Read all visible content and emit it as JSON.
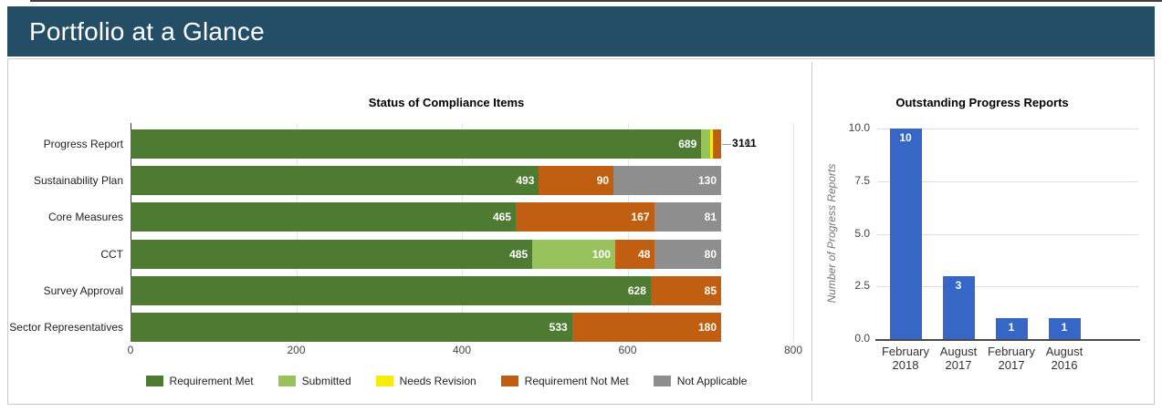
{
  "header": {
    "title": "Portfolio at a Glance"
  },
  "chart_data": [
    {
      "type": "bar",
      "orientation": "horizontal",
      "stacked": true,
      "title": "Status of Compliance Items",
      "categories": [
        "Progress Report",
        "Sustainability Plan",
        "Core Measures",
        "CCT",
        "Survey Approval",
        "Sector Representatives"
      ],
      "series": [
        {
          "name": "Requirement Met",
          "color": "#4E7B31",
          "values": [
            689,
            493,
            465,
            485,
            628,
            533
          ]
        },
        {
          "name": "Submitted",
          "color": "#98C25B",
          "values": [
            11,
            0,
            0,
            100,
            0,
            0
          ]
        },
        {
          "name": "Needs Revision",
          "color": "#F4EC0B",
          "values": [
            3,
            0,
            0,
            0,
            0,
            0
          ]
        },
        {
          "name": "Requirement Not Met",
          "color": "#C05F11",
          "values": [
            10,
            90,
            167,
            48,
            85,
            180
          ]
        },
        {
          "name": "Not Applicable",
          "color": "#8E8E8E",
          "values": [
            0,
            130,
            81,
            80,
            0,
            0
          ]
        }
      ],
      "xlim": [
        0,
        800
      ],
      "x_ticks": [
        "0",
        "200",
        "400",
        "600",
        "800"
      ],
      "grid": true,
      "legend_position": "bottom"
    },
    {
      "type": "bar",
      "orientation": "vertical",
      "title": "Outstanding Progress Reports",
      "ylabel": "Number of Progress Reports",
      "categories": [
        [
          "February",
          "2018"
        ],
        [
          "August",
          "2017"
        ],
        [
          "February",
          "2017"
        ],
        [
          "August",
          "2016"
        ]
      ],
      "values": [
        10,
        3,
        1,
        1
      ],
      "bar_color": "#3667C6",
      "ylim": [
        0,
        10
      ],
      "y_ticks": [
        "0.0",
        "2.5",
        "5.0",
        "7.5",
        "10.0"
      ],
      "grid": true,
      "legend_position": "none"
    }
  ]
}
